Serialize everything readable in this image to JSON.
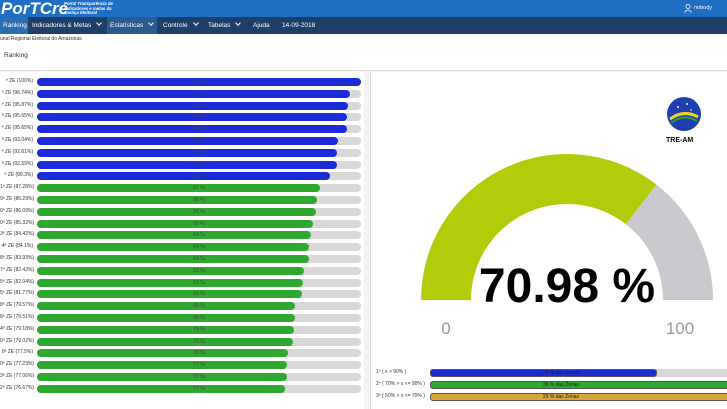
{
  "header": {
    "logo": "PorTCre",
    "portal_subtitle": "Portal Transparência de indicadores e metas da Justiça Eleitoral",
    "user": "nobody"
  },
  "nav": [
    "Ranking",
    "Indicadores & Metas",
    "Estatísticas",
    "Controle",
    "Tabelas",
    "Ajuda ?",
    "14-09-2018"
  ],
  "breadcrumb": "unal Regional Eleitoral do Amazonas",
  "page_title": "Ranking",
  "ranking": [
    {
      "label": "ª ZE (100%)",
      "value": 100,
      "bar_text": "100 %",
      "color": "#1b2bd8"
    },
    {
      "label": "ª ZE (96.74%)",
      "value": 96.74,
      "bar_text": "97 %",
      "color": "#1b2bd8"
    },
    {
      "label": "ª ZE (95.87%)",
      "value": 95.87,
      "bar_text": "96 %",
      "color": "#1b2bd8"
    },
    {
      "label": "ª ZE (95.65%)",
      "value": 95.65,
      "bar_text": "96 %",
      "color": "#1b2bd8"
    },
    {
      "label": "ª ZE (95.65%)",
      "value": 95.65,
      "bar_text": "96 %",
      "color": "#1b2bd8"
    },
    {
      "label": "ª ZE (93.04%)",
      "value": 93.04,
      "bar_text": "93 %",
      "color": "#1b2bd8"
    },
    {
      "label": "ª ZE (92.61%)",
      "value": 92.61,
      "bar_text": "93 %",
      "color": "#1b2bd8"
    },
    {
      "label": "ª ZE (92.59%)",
      "value": 92.59,
      "bar_text": "93 %",
      "color": "#1b2bd8"
    },
    {
      "label": "ª ZE (90.3%)",
      "value": 90.3,
      "bar_text": "90 %",
      "color": "#1b2bd8"
    },
    {
      "label": "1ª ZE (87.28%)",
      "value": 87.28,
      "bar_text": "87 %",
      "color": "#2fa82f"
    },
    {
      "label": "9ª ZE (86.29%)",
      "value": 86.29,
      "bar_text": "86 %",
      "color": "#2fa82f"
    },
    {
      "label": "0ª ZE (86.09%)",
      "value": 86.09,
      "bar_text": "86 %",
      "color": "#2fa82f"
    },
    {
      "label": "0ª ZE (85.32%)",
      "value": 85.32,
      "bar_text": "85 %",
      "color": "#2fa82f"
    },
    {
      "label": "3ª ZE (84.42%)",
      "value": 84.42,
      "bar_text": "84 %",
      "color": "#2fa82f"
    },
    {
      "label": "4ª ZE (84.1%)",
      "value": 84.1,
      "bar_text": "84 %",
      "color": "#2fa82f"
    },
    {
      "label": "8ª ZE (83.93%)",
      "value": 83.93,
      "bar_text": "84 %",
      "color": "#2fa82f"
    },
    {
      "label": "7ª ZE (82.43%)",
      "value": 82.43,
      "bar_text": "82 %",
      "color": "#2fa82f"
    },
    {
      "label": "5ª ZE (82.04%)",
      "value": 82.04,
      "bar_text": "82 %",
      "color": "#2fa82f"
    },
    {
      "label": "5ª ZE (81.77%)",
      "value": 81.77,
      "bar_text": "82 %",
      "color": "#2fa82f"
    },
    {
      "label": "8ª ZE (79.57%)",
      "value": 79.57,
      "bar_text": "80 %",
      "color": "#2fa82f"
    },
    {
      "label": "6ª ZE (79.51%)",
      "value": 79.51,
      "bar_text": "80 %",
      "color": "#2fa82f"
    },
    {
      "label": "4ª ZE (79.18%)",
      "value": 79.18,
      "bar_text": "79 %",
      "color": "#2fa82f"
    },
    {
      "label": "0ª ZE (79.02%)",
      "value": 79.02,
      "bar_text": "79 %",
      "color": "#2fa82f"
    },
    {
      "label": "0ª ZE (77.5%)",
      "value": 77.5,
      "bar_text": "78 %",
      "color": "#2fa82f"
    },
    {
      "label": "0ª ZE (77.23%)",
      "value": 77.23,
      "bar_text": "77 %",
      "color": "#2fa82f"
    },
    {
      "label": "3ª ZE (77.06%)",
      "value": 77.06,
      "bar_text": "77 %",
      "color": "#2fa82f"
    },
    {
      "label": "2ª ZE (76.67%)",
      "value": 76.67,
      "bar_text": "77 %",
      "color": "#2fa82f"
    }
  ],
  "logo_caption": "TRE-AM",
  "gauge": {
    "value": 70.98,
    "value_label": "70.98 %",
    "min": 0,
    "max": 100,
    "color": "#b2cc0a",
    "track_color": "#c9c9ce"
  },
  "tiers": [
    {
      "label": "1º ( x > 90% )",
      "text": "25 % das Zonas",
      "color": "#1b2bd8"
    },
    {
      "label": "2º ( 70% > x <= 90% )",
      "text": "38 % das Zonas",
      "color": "#2fa82f"
    },
    {
      "label": "3º ( 50% > x <= 70% )",
      "text": "25 % das Zonas",
      "color": "#d9a53a"
    }
  ]
}
